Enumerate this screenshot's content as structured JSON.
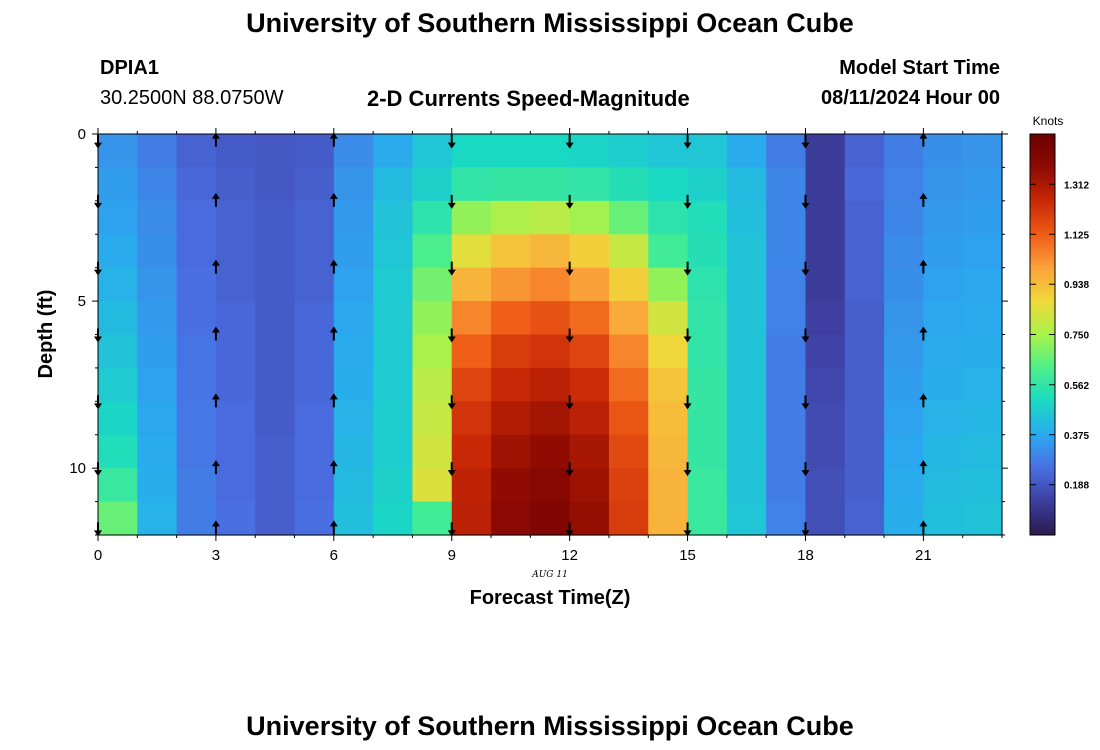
{
  "page": {
    "title_top": "University of Southern Mississippi Ocean Cube",
    "title_bottom": "University of Southern Mississippi Ocean Cube"
  },
  "header": {
    "station": "DPIA1",
    "location": "30.2500N  88.0750W",
    "plot_title": "2-D Currents Speed-Magnitude",
    "model_start_label": "Model Start Time",
    "model_start_value": "08/11/2024 Hour 00"
  },
  "chart_data": {
    "type": "heatmap",
    "title": "2-D Currents Speed-Magnitude",
    "xlabel": "Forecast Time(Z)",
    "ylabel": "Depth (ft)",
    "x_sublabel": "AUG 11",
    "x_ticks": [
      0,
      3,
      6,
      9,
      12,
      15,
      18,
      21
    ],
    "y_ticks": [
      0,
      5,
      10
    ],
    "xlim": [
      0,
      23
    ],
    "ylim": [
      0,
      12
    ],
    "y_inverted": true,
    "x_values": [
      0,
      1,
      2,
      3,
      4,
      5,
      6,
      7,
      8,
      9,
      10,
      11,
      12,
      13,
      14,
      15,
      16,
      17,
      18,
      19,
      20,
      21,
      22
    ],
    "depth_rows": [
      0.5,
      1.5,
      2.5,
      3.5,
      4.5,
      5.5,
      6.5,
      7.5,
      8.5,
      9.5,
      10.5,
      11.5
    ],
    "speed_knots": [
      [
        0.33,
        0.28,
        0.22,
        0.2,
        0.19,
        0.2,
        0.31,
        0.38,
        0.45,
        0.5,
        0.5,
        0.5,
        0.49,
        0.47,
        0.45,
        0.45,
        0.38,
        0.28,
        0.12,
        0.22,
        0.28,
        0.32,
        0.33
      ],
      [
        0.35,
        0.3,
        0.23,
        0.21,
        0.19,
        0.21,
        0.33,
        0.42,
        0.48,
        0.56,
        0.57,
        0.57,
        0.56,
        0.53,
        0.5,
        0.48,
        0.42,
        0.3,
        0.12,
        0.23,
        0.29,
        0.33,
        0.34
      ],
      [
        0.36,
        0.31,
        0.24,
        0.22,
        0.2,
        0.22,
        0.34,
        0.44,
        0.55,
        0.72,
        0.76,
        0.78,
        0.74,
        0.66,
        0.55,
        0.52,
        0.43,
        0.3,
        0.12,
        0.22,
        0.3,
        0.34,
        0.35
      ],
      [
        0.38,
        0.32,
        0.24,
        0.22,
        0.2,
        0.22,
        0.35,
        0.45,
        0.62,
        0.85,
        0.92,
        0.95,
        0.9,
        0.8,
        0.6,
        0.53,
        0.44,
        0.3,
        0.12,
        0.22,
        0.31,
        0.35,
        0.36
      ],
      [
        0.4,
        0.33,
        0.25,
        0.22,
        0.2,
        0.22,
        0.36,
        0.46,
        0.68,
        0.96,
        1.02,
        1.05,
        1.0,
        0.9,
        0.72,
        0.55,
        0.44,
        0.29,
        0.12,
        0.22,
        0.32,
        0.36,
        0.37
      ],
      [
        0.42,
        0.34,
        0.25,
        0.23,
        0.2,
        0.23,
        0.37,
        0.46,
        0.72,
        1.05,
        1.12,
        1.15,
        1.1,
        0.98,
        0.82,
        0.56,
        0.44,
        0.29,
        0.13,
        0.21,
        0.33,
        0.37,
        0.38
      ],
      [
        0.44,
        0.35,
        0.26,
        0.23,
        0.2,
        0.23,
        0.38,
        0.46,
        0.75,
        1.12,
        1.2,
        1.22,
        1.18,
        1.05,
        0.88,
        0.56,
        0.44,
        0.28,
        0.14,
        0.21,
        0.34,
        0.38,
        0.39
      ],
      [
        0.46,
        0.36,
        0.26,
        0.23,
        0.2,
        0.23,
        0.39,
        0.46,
        0.78,
        1.18,
        1.25,
        1.28,
        1.24,
        1.1,
        0.92,
        0.57,
        0.44,
        0.28,
        0.15,
        0.21,
        0.35,
        0.39,
        0.4
      ],
      [
        0.49,
        0.37,
        0.27,
        0.24,
        0.2,
        0.24,
        0.4,
        0.47,
        0.8,
        1.22,
        1.3,
        1.33,
        1.28,
        1.14,
        0.94,
        0.57,
        0.44,
        0.28,
        0.16,
        0.21,
        0.36,
        0.4,
        0.41
      ],
      [
        0.52,
        0.38,
        0.27,
        0.24,
        0.21,
        0.24,
        0.41,
        0.47,
        0.82,
        1.25,
        1.34,
        1.37,
        1.32,
        1.17,
        0.95,
        0.57,
        0.44,
        0.28,
        0.16,
        0.21,
        0.37,
        0.41,
        0.42
      ],
      [
        0.58,
        0.39,
        0.28,
        0.24,
        0.21,
        0.24,
        0.42,
        0.48,
        0.84,
        1.27,
        1.37,
        1.4,
        1.34,
        1.19,
        0.96,
        0.58,
        0.44,
        0.28,
        0.17,
        0.21,
        0.38,
        0.42,
        0.43
      ],
      [
        0.66,
        0.4,
        0.28,
        0.25,
        0.21,
        0.25,
        0.43,
        0.49,
        0.6,
        1.28,
        1.39,
        1.42,
        1.36,
        1.2,
        0.96,
        0.58,
        0.45,
        0.29,
        0.17,
        0.22,
        0.39,
        0.43,
        0.44
      ]
    ],
    "vector_times": [
      0,
      3,
      6,
      9,
      12,
      15,
      18,
      21
    ],
    "vector_directions": [
      "down",
      "up",
      "up",
      "down",
      "down",
      "down",
      "down",
      "up"
    ],
    "vector_depths": [
      0.2,
      2.0,
      4.0,
      6.0,
      8.0,
      10.0,
      11.8
    ],
    "colorbar": {
      "label": "Knots",
      "ticks": [
        "0.188",
        "0.375",
        "0.562",
        "0.750",
        "0.938",
        "1.125",
        "1.312"
      ],
      "range": [
        0,
        1.5
      ],
      "colors": [
        "#2a1a4a",
        "#3d3d9e",
        "#4a6fe3",
        "#2aa9f0",
        "#1ad9c3",
        "#4cef8a",
        "#a8f24a",
        "#f0d93a",
        "#fba13a",
        "#ee5c16",
        "#c82806",
        "#8e0a02",
        "#6b0000"
      ]
    }
  }
}
